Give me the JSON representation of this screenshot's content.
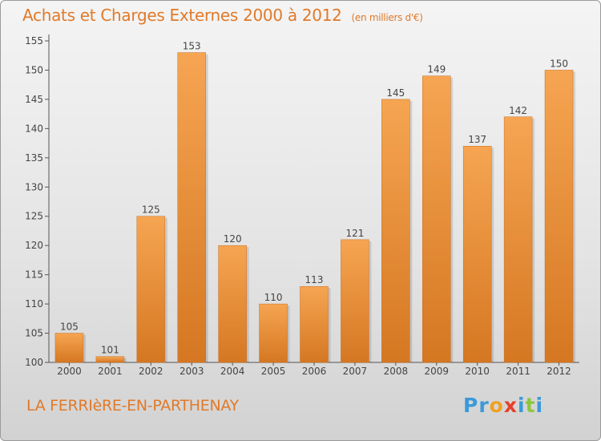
{
  "header": {
    "title": "Achats et Charges Externes 2000 à 2012",
    "subtitle": "(en milliers d'€)"
  },
  "footer": {
    "place": "LA FERRIèRE-EN-PARTHENAY",
    "logo_letters": [
      "P",
      "r",
      "o",
      "x",
      "i",
      "t",
      "i"
    ],
    "logo_colors": [
      "#3a9ad9",
      "#3a9ad9",
      "#f0a020",
      "#e8402a",
      "#3a9ad9",
      "#8cc63f",
      "#3a9ad9"
    ]
  },
  "colors": {
    "bar_top": "#f6a552",
    "bar_bottom": "#d57722",
    "title": "#e07a2a"
  },
  "chart_data": {
    "type": "bar",
    "categories": [
      "2000",
      "2001",
      "2002",
      "2003",
      "2004",
      "2005",
      "2006",
      "2007",
      "2008",
      "2009",
      "2010",
      "2011",
      "2012"
    ],
    "values": [
      105,
      101,
      125,
      153,
      120,
      110,
      113,
      121,
      145,
      149,
      137,
      142,
      150
    ],
    "title": "Achats et Charges Externes 2000 à 2012",
    "xlabel": "",
    "ylabel": "",
    "ylim": [
      100,
      155
    ],
    "yticks": [
      100,
      105,
      110,
      115,
      120,
      125,
      130,
      135,
      140,
      145,
      150,
      155
    ],
    "grid": false,
    "data_labels": true
  }
}
